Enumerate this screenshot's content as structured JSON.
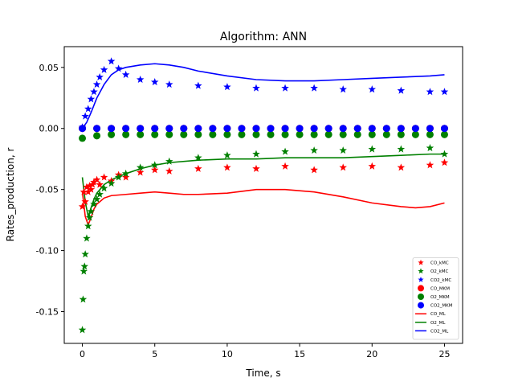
{
  "chart_data": {
    "type": "scatter",
    "title": "Algorithm: ANN",
    "xlabel": "Time, s",
    "ylabel": "Rates_production, r",
    "xlim": [
      -1.25,
      26.25
    ],
    "ylim": [
      -0.176,
      0.067
    ],
    "x_ticks": [
      0,
      5,
      10,
      15,
      20,
      25
    ],
    "y_ticks": [
      -0.15,
      -0.1,
      -0.05,
      0.0,
      0.05
    ],
    "grid": false,
    "legend_position": "lower-right",
    "series": [
      {
        "name": "CO_kMC",
        "kind": "star",
        "color": "#ff0000",
        "x": [
          0.0,
          0.1,
          0.2,
          0.3,
          0.4,
          0.5,
          0.6,
          0.7,
          0.8,
          1.0,
          1.2,
          1.5,
          2.0,
          2.5,
          3.0,
          4.0,
          5.0,
          6.0,
          8.0,
          10.0,
          12.0,
          14.0,
          16.0,
          18.0,
          20.0,
          22.0,
          24.0,
          25.0
        ],
        "y": [
          -0.064,
          -0.052,
          -0.06,
          -0.048,
          -0.052,
          -0.047,
          -0.05,
          -0.046,
          -0.044,
          -0.042,
          -0.046,
          -0.04,
          -0.043,
          -0.038,
          -0.04,
          -0.036,
          -0.034,
          -0.035,
          -0.033,
          -0.032,
          -0.033,
          -0.031,
          -0.034,
          -0.032,
          -0.031,
          -0.032,
          -0.03,
          -0.028
        ]
      },
      {
        "name": "O2_kMC",
        "kind": "star",
        "color": "#008000",
        "x": [
          0.0,
          0.05,
          0.1,
          0.15,
          0.2,
          0.3,
          0.4,
          0.5,
          0.6,
          0.8,
          1.0,
          1.2,
          1.5,
          2.0,
          2.5,
          3.0,
          4.0,
          5.0,
          6.0,
          8.0,
          10.0,
          12.0,
          14.0,
          16.0,
          18.0,
          20.0,
          22.0,
          24.0,
          25.0
        ],
        "y": [
          -0.165,
          -0.14,
          -0.117,
          -0.113,
          -0.103,
          -0.09,
          -0.08,
          -0.073,
          -0.068,
          -0.062,
          -0.058,
          -0.054,
          -0.049,
          -0.045,
          -0.04,
          -0.037,
          -0.032,
          -0.03,
          -0.027,
          -0.024,
          -0.022,
          -0.021,
          -0.019,
          -0.018,
          -0.018,
          -0.017,
          -0.017,
          -0.016,
          -0.021
        ]
      },
      {
        "name": "CO2_kMC",
        "kind": "star",
        "color": "#0000ff",
        "x": [
          0.0,
          0.2,
          0.4,
          0.6,
          0.8,
          1.0,
          1.2,
          1.5,
          2.0,
          2.5,
          3.0,
          4.0,
          5.0,
          6.0,
          8.0,
          10.0,
          12.0,
          14.0,
          16.0,
          18.0,
          20.0,
          22.0,
          24.0,
          25.0
        ],
        "y": [
          0.001,
          0.01,
          0.016,
          0.024,
          0.03,
          0.036,
          0.042,
          0.048,
          0.055,
          0.049,
          0.044,
          0.04,
          0.038,
          0.036,
          0.035,
          0.034,
          0.033,
          0.033,
          0.033,
          0.032,
          0.032,
          0.031,
          0.03,
          0.03
        ]
      },
      {
        "name": "CO_MKM",
        "kind": "circle",
        "color": "#ff0000",
        "x": [
          0,
          1,
          2,
          3,
          4,
          5,
          6,
          7,
          8,
          9,
          10,
          11,
          12,
          13,
          14,
          15,
          16,
          17,
          18,
          19,
          20,
          21,
          22,
          23,
          24,
          25
        ],
        "y": [
          0.0,
          0.0,
          0.0,
          0.0,
          0.0,
          0.0,
          0.0,
          0.0,
          0.0,
          0.0,
          0.0,
          0.0,
          0.0,
          0.0,
          0.0,
          0.0,
          0.0,
          0.0,
          0.0,
          0.0,
          0.0,
          0.0,
          0.0,
          0.0,
          0.0,
          0.0
        ]
      },
      {
        "name": "O2_MKM",
        "kind": "circle",
        "color": "#008000",
        "x": [
          0,
          1,
          2,
          3,
          4,
          5,
          6,
          7,
          8,
          9,
          10,
          11,
          12,
          13,
          14,
          15,
          16,
          17,
          18,
          19,
          20,
          21,
          22,
          23,
          24,
          25
        ],
        "y": [
          -0.008,
          -0.006,
          -0.005,
          -0.005,
          -0.005,
          -0.005,
          -0.005,
          -0.005,
          -0.005,
          -0.005,
          -0.005,
          -0.005,
          -0.005,
          -0.005,
          -0.005,
          -0.005,
          -0.005,
          -0.005,
          -0.005,
          -0.005,
          -0.005,
          -0.005,
          -0.005,
          -0.005,
          -0.005,
          -0.005
        ]
      },
      {
        "name": "CO2_MKM",
        "kind": "circle",
        "color": "#0000ff",
        "x": [
          0,
          1,
          2,
          3,
          4,
          5,
          6,
          7,
          8,
          9,
          10,
          11,
          12,
          13,
          14,
          15,
          16,
          17,
          18,
          19,
          20,
          21,
          22,
          23,
          24,
          25
        ],
        "y": [
          0.0,
          0.0,
          0.0,
          0.0,
          0.0,
          0.0,
          0.0,
          0.0,
          0.0,
          0.0,
          0.0,
          0.0,
          0.0,
          0.0,
          0.0,
          0.0,
          0.0,
          0.0,
          0.0,
          0.0,
          0.0,
          0.0,
          0.0,
          0.0,
          0.0,
          0.0
        ]
      },
      {
        "name": "CO_ML",
        "kind": "line",
        "color": "#ff0000",
        "x": [
          0.0,
          0.2,
          0.4,
          0.6,
          0.8,
          1.0,
          1.5,
          2.0,
          3.0,
          4.0,
          5.0,
          6.0,
          7.0,
          8.0,
          10.0,
          12.0,
          13.0,
          14.0,
          16.0,
          18.0,
          20.0,
          22.0,
          23.0,
          24.0,
          25.0
        ],
        "y": [
          -0.052,
          -0.072,
          -0.079,
          -0.073,
          -0.066,
          -0.062,
          -0.057,
          -0.055,
          -0.054,
          -0.053,
          -0.052,
          -0.053,
          -0.054,
          -0.054,
          -0.053,
          -0.05,
          -0.05,
          -0.05,
          -0.052,
          -0.056,
          -0.061,
          -0.064,
          -0.065,
          -0.064,
          -0.061
        ]
      },
      {
        "name": "O2_ML",
        "kind": "line",
        "color": "#008000",
        "x": [
          0.0,
          0.2,
          0.4,
          0.6,
          0.8,
          1.0,
          1.5,
          2.0,
          3.0,
          4.0,
          5.0,
          6.0,
          8.0,
          10.0,
          12.0,
          14.0,
          16.0,
          18.0,
          20.0,
          22.0,
          24.0,
          25.0
        ],
        "y": [
          -0.04,
          -0.06,
          -0.072,
          -0.065,
          -0.058,
          -0.053,
          -0.046,
          -0.042,
          -0.037,
          -0.033,
          -0.03,
          -0.028,
          -0.026,
          -0.025,
          -0.025,
          -0.024,
          -0.024,
          -0.024,
          -0.023,
          -0.022,
          -0.021,
          -0.021
        ]
      },
      {
        "name": "CO2_ML",
        "kind": "line",
        "color": "#0000ff",
        "x": [
          0.0,
          0.3,
          0.6,
          1.0,
          1.5,
          2.0,
          2.5,
          3.0,
          4.0,
          5.0,
          6.0,
          7.0,
          8.0,
          10.0,
          12.0,
          14.0,
          16.0,
          18.0,
          20.0,
          22.0,
          24.0,
          25.0
        ],
        "y": [
          0.0,
          0.005,
          0.013,
          0.025,
          0.036,
          0.044,
          0.048,
          0.05,
          0.052,
          0.053,
          0.052,
          0.05,
          0.047,
          0.043,
          0.04,
          0.039,
          0.039,
          0.04,
          0.041,
          0.042,
          0.043,
          0.044
        ]
      }
    ]
  }
}
